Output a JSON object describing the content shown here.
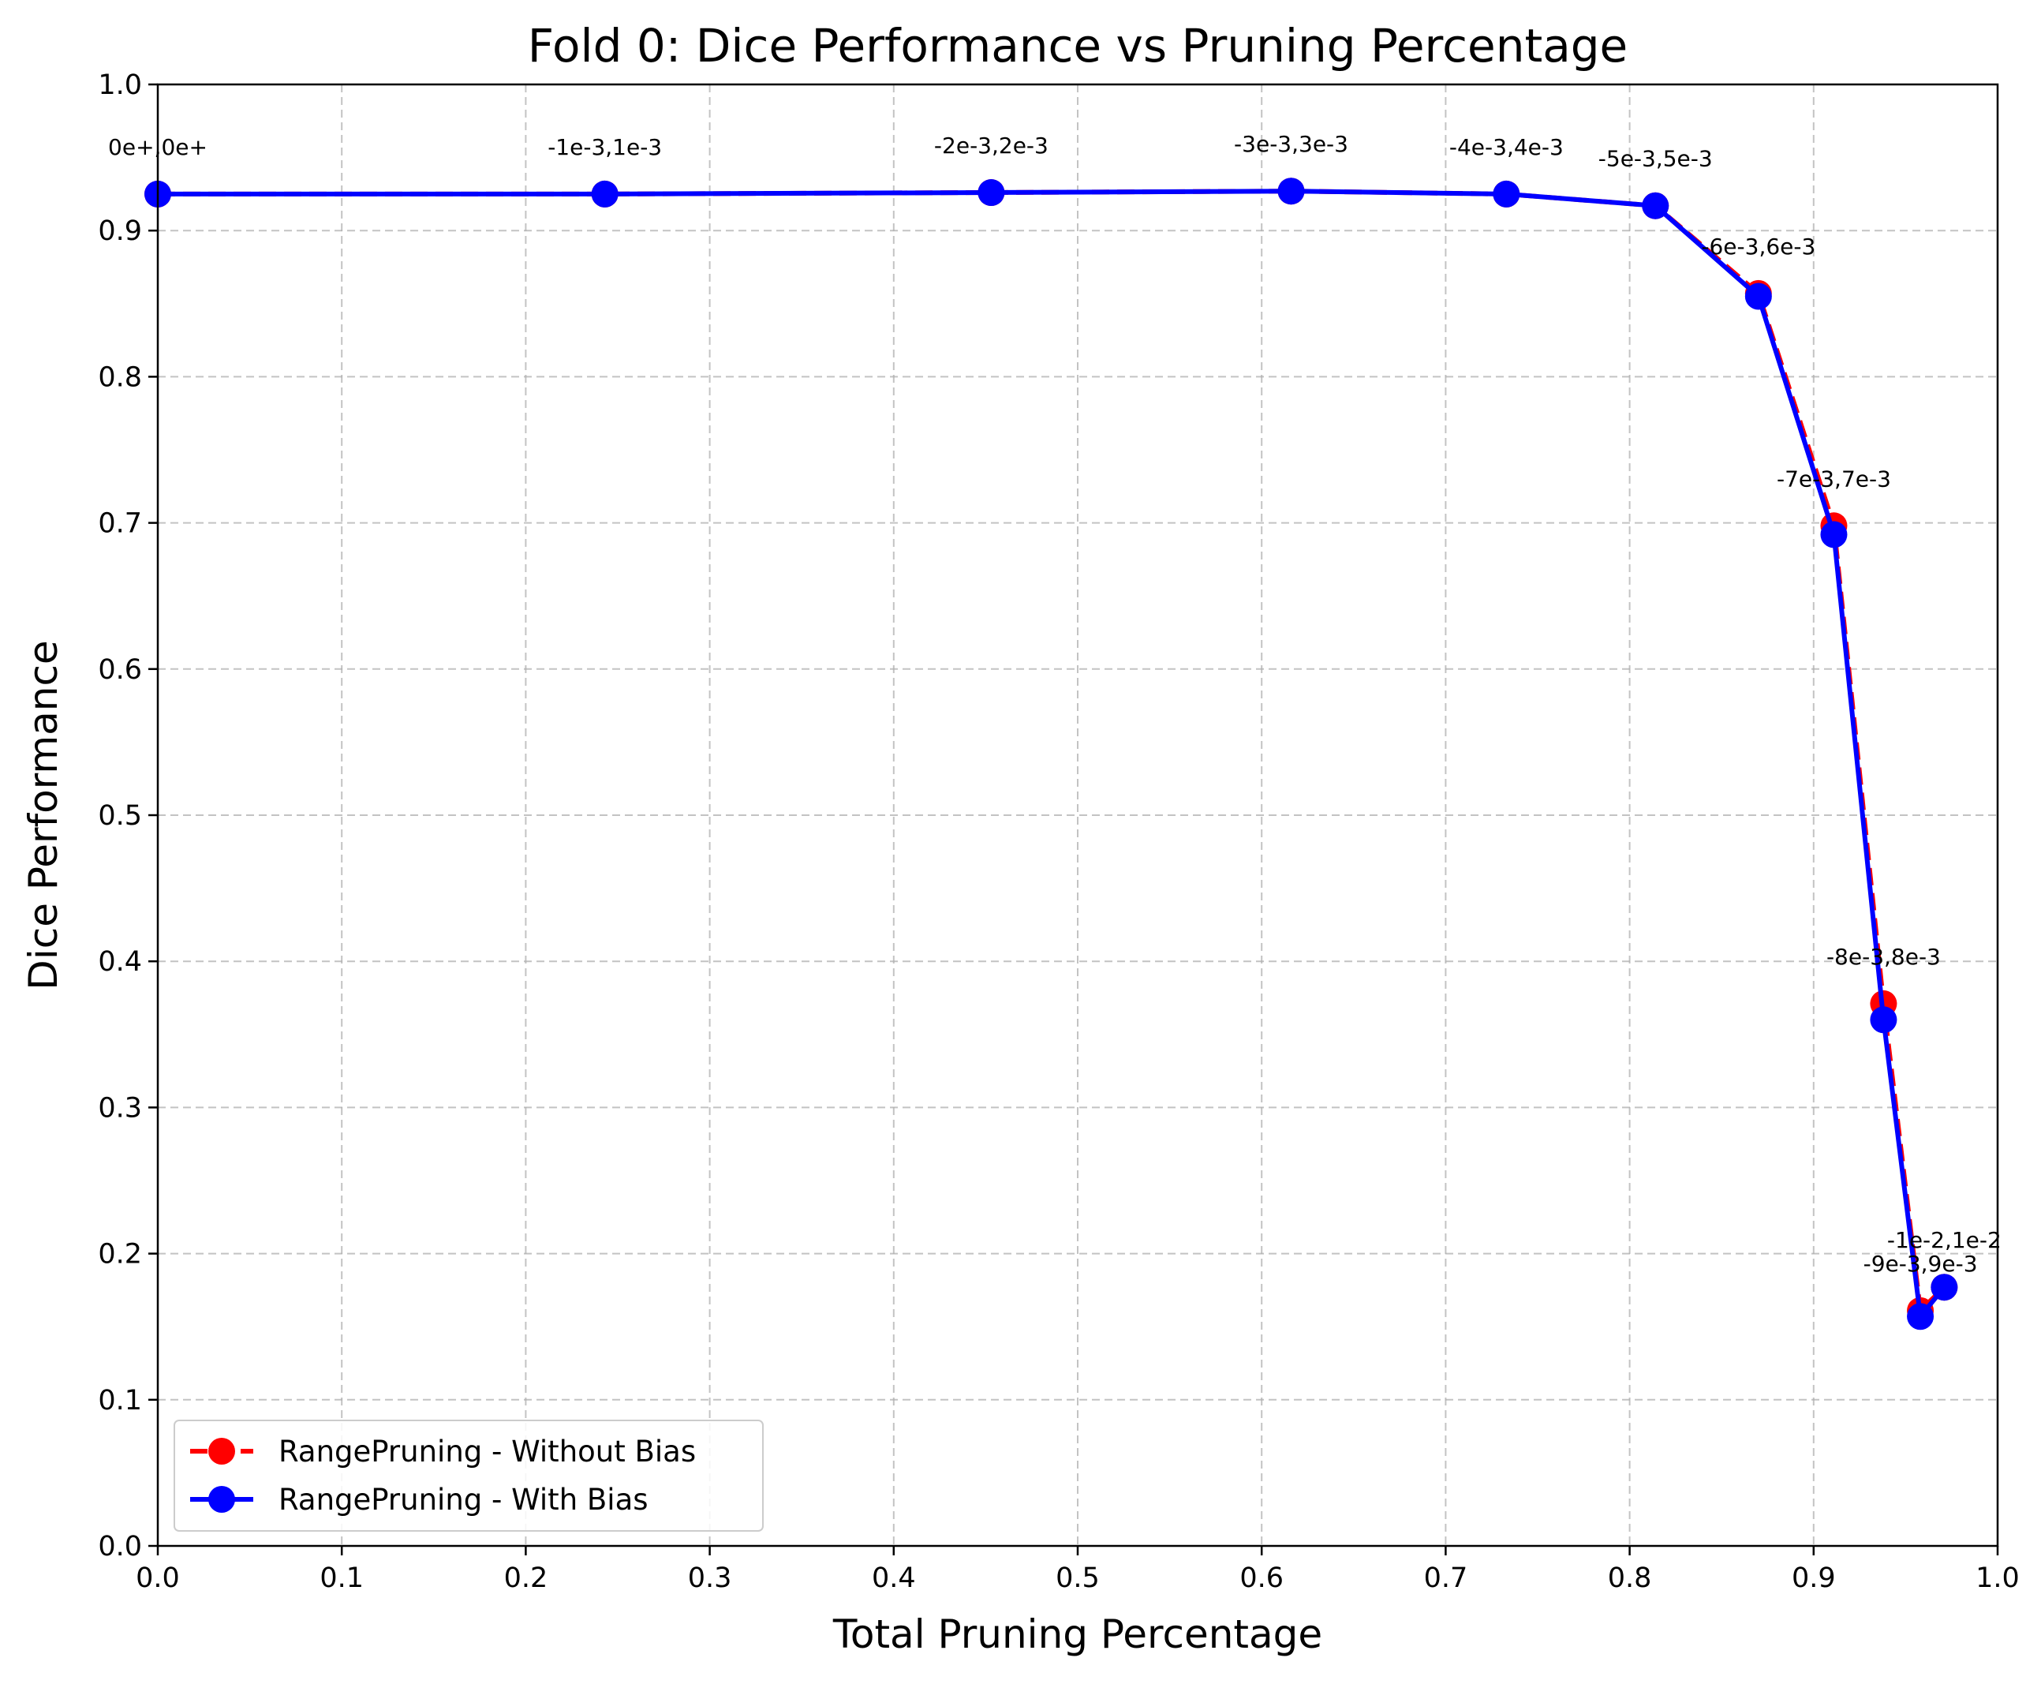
{
  "chart_data": {
    "type": "line",
    "title": "Fold 0: Dice Performance vs Pruning Percentage",
    "xlabel": "Total Pruning Percentage",
    "ylabel": "Dice Performance",
    "xlim": [
      0.0,
      1.0
    ],
    "ylim": [
      0.0,
      1.0
    ],
    "xticks": [
      "0.0",
      "0.1",
      "0.2",
      "0.3",
      "0.4",
      "0.5",
      "0.6",
      "0.7",
      "0.8",
      "0.9",
      "1.0"
    ],
    "yticks": [
      "0.0",
      "0.1",
      "0.2",
      "0.3",
      "0.4",
      "0.5",
      "0.6",
      "0.7",
      "0.8",
      "0.9",
      "1.0"
    ],
    "grid": true,
    "legend_position": "lower-left",
    "series": [
      {
        "name": "RangePruning - Without Bias",
        "color": "#ff0000",
        "line_style": "dashed",
        "marker": "circle",
        "x": [
          0.0,
          0.243,
          0.453,
          0.616,
          0.733,
          0.814,
          0.87,
          0.911,
          0.938,
          0.958,
          0.971
        ],
        "y": [
          0.925,
          0.925,
          0.926,
          0.927,
          0.925,
          0.917,
          0.857,
          0.698,
          0.371,
          0.161,
          0.177
        ]
      },
      {
        "name": "RangePruning - With Bias",
        "color": "#0000ff",
        "line_style": "solid",
        "marker": "circle",
        "x": [
          0.0,
          0.243,
          0.453,
          0.616,
          0.733,
          0.814,
          0.87,
          0.911,
          0.938,
          0.958,
          0.971
        ],
        "y": [
          0.925,
          0.925,
          0.926,
          0.927,
          0.925,
          0.917,
          0.855,
          0.692,
          0.36,
          0.157,
          0.177
        ]
      }
    ],
    "annotations": [
      {
        "text": "0e+,0e+",
        "x": 0.0,
        "y": 0.925
      },
      {
        "text": "-1e-3,1e-3",
        "x": 0.243,
        "y": 0.925
      },
      {
        "text": "-2e-3,2e-3",
        "x": 0.453,
        "y": 0.926
      },
      {
        "text": "-3e-3,3e-3",
        "x": 0.616,
        "y": 0.927
      },
      {
        "text": "-4e-3,4e-3",
        "x": 0.733,
        "y": 0.925
      },
      {
        "text": "-5e-3,5e-3",
        "x": 0.814,
        "y": 0.917
      },
      {
        "text": "-6e-3,6e-3",
        "x": 0.87,
        "y": 0.857
      },
      {
        "text": "-7e-3,7e-3",
        "x": 0.911,
        "y": 0.698
      },
      {
        "text": "-8e-3,8e-3",
        "x": 0.938,
        "y": 0.371
      },
      {
        "text": "-9e-3,9e-3",
        "x": 0.958,
        "y": 0.161
      },
      {
        "text": "-1e-2,1e-2",
        "x": 0.971,
        "y": 0.177
      }
    ]
  }
}
